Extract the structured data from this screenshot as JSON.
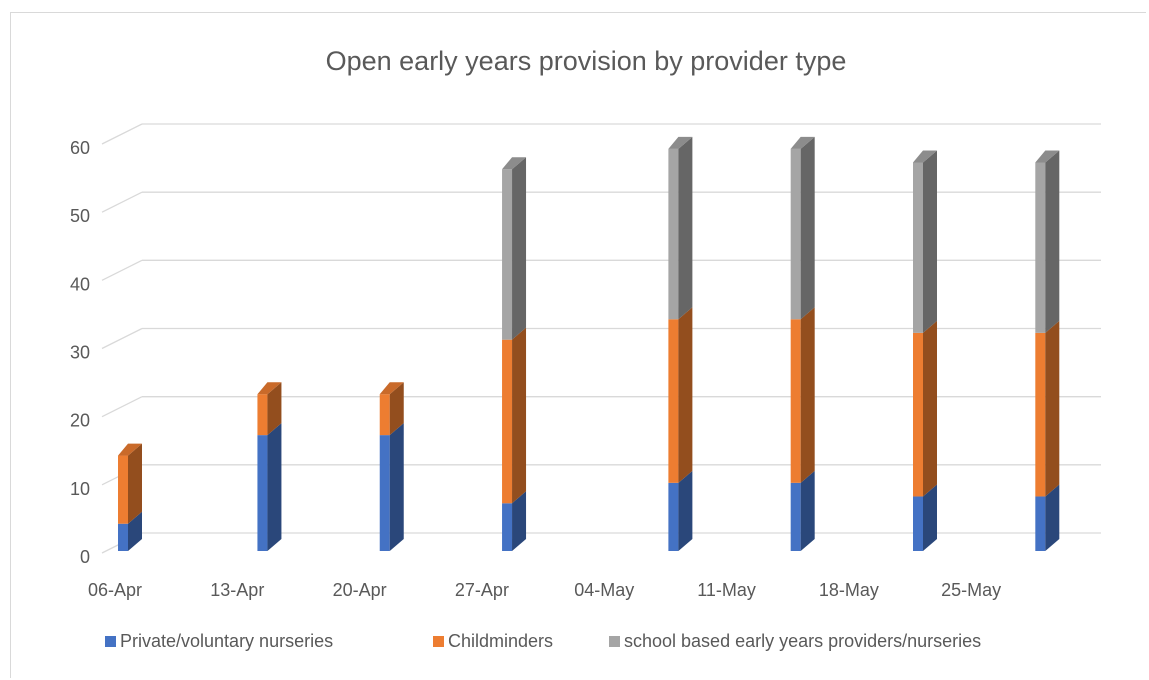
{
  "chart_data": {
    "type": "bar",
    "stacked": true,
    "three_d": true,
    "title": "Open early years provision by provider type",
    "categories": [
      "06-Apr",
      "13-Apr",
      "20-Apr",
      "27-Apr",
      "04-May",
      "11-May",
      "18-May",
      "25-May"
    ],
    "bar_x": [
      0,
      1.14,
      2.14,
      3.14,
      4.5,
      5.5,
      6.5,
      7.5
    ],
    "xlim": [
      0,
      7.8
    ],
    "ylim": [
      0,
      60
    ],
    "yticks": [
      0,
      10,
      20,
      30,
      40,
      50,
      60
    ],
    "grid": true,
    "legend": "bottom",
    "series": [
      {
        "name": "Private/voluntary nurseries",
        "color": "#4472c4",
        "values": [
          4,
          17,
          17,
          7,
          10,
          10,
          8,
          8
        ]
      },
      {
        "name": "Childminders",
        "color": "#ed7d31",
        "values": [
          10,
          6,
          6,
          24,
          24,
          24,
          24,
          24
        ]
      },
      {
        "name": "school based early years providers/nurseries",
        "color": "#a5a5a5",
        "values": [
          0,
          0,
          0,
          25,
          25,
          25,
          25,
          25
        ]
      }
    ]
  }
}
